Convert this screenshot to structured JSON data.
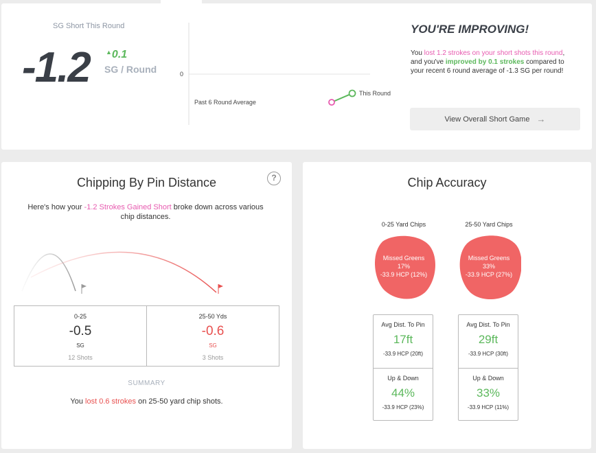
{
  "summary": {
    "sg_label": "SG Short This Round",
    "sg_value": "-1.2",
    "delta_value": "0.1",
    "delta_unit": "SG / Round",
    "trend": {
      "zero_label": "0",
      "avg_label": "Past 6 Round Average",
      "this_label": "This Round",
      "avg_value": -1.3,
      "this_value": -1.2
    },
    "headline": "YOU'RE IMPROVING!",
    "text": {
      "p1": "You ",
      "p2": "lost 1.2 strokes on your short shots this round",
      "p3": ", and you've ",
      "p4": "improved by 0.1 strokes",
      "p5": " compared to your recent 6 round average of -1.3 SG per round!"
    },
    "overall_button": "View Overall Short Game"
  },
  "chipping": {
    "title": "Chipping By Pin Distance",
    "intro": {
      "p1": "Here's how your ",
      "p2": "-1.2 Strokes Gained Short",
      "p3": " broke down across various chip distances."
    },
    "distances": [
      {
        "range": "0-25",
        "value": "-0.5",
        "unit": "SG",
        "shots": "12 Shots"
      },
      {
        "range": "25-50 Yds",
        "value": "-0.6",
        "unit": "SG",
        "shots": "3 Shots"
      }
    ],
    "summary_heading": "SUMMARY",
    "summary": {
      "p1": "You ",
      "p2": "lost 0.6 strokes",
      "p3": " on 25-50 yard chip shots."
    }
  },
  "accuracy": {
    "title": "Chip Accuracy",
    "columns": [
      {
        "title": "0-25 Yard Chips",
        "missed_label": "Missed Greens",
        "missed_pct": "17%",
        "missed_hcp": "-33.9 HCP (12%)",
        "avg_label": "Avg Dist. To Pin",
        "avg_value": "17ft",
        "avg_hcp": "-33.9 HCP (20ft)",
        "ud_label": "Up & Down",
        "ud_value": "44%",
        "ud_hcp": "-33.9 HCP (23%)"
      },
      {
        "title": "25-50 Yard Chips",
        "missed_label": "Missed Greens",
        "missed_pct": "33%",
        "missed_hcp": "-33.9 HCP (27%)",
        "avg_label": "Avg Dist. To Pin",
        "avg_value": "29ft",
        "avg_hcp": "-33.9 HCP (30ft)",
        "ud_label": "Up & Down",
        "ud_value": "33%",
        "ud_hcp": "-33.9 HCP (11%)"
      }
    ]
  },
  "colors": {
    "accent_pink": "#e75aaf",
    "positive_green": "#5cb85c",
    "negative_red": "#e8504f",
    "blob_fill": "#f06565"
  },
  "icons": {
    "delta": "up-arrow-icon",
    "overall": "arrow-right-icon",
    "help": "question-circle-icon",
    "flag": "flag-icon"
  }
}
